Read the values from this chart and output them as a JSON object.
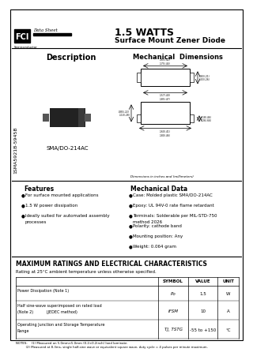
{
  "title_watts": "1.5 WATTS",
  "title_device": "Surface Mount Zener Diode",
  "logo_text": "FCI",
  "datasheet_text": "Data Sheet",
  "company_sub": "Semiconductor",
  "side_label": "1SMA5921B-5945B",
  "desc_label": "Description",
  "mech_dim_label": "Mechanical  Dimensions",
  "package_label": "SMA/DO-214AC",
  "dim_note": "Dimensions in inches and (millimeters)",
  "features_title": "Features",
  "features": [
    "For surface mounted applications",
    "1.5 W power dissipation",
    "Ideally suited for automated assembly\nprocesses"
  ],
  "mech_title": "Mechanical Data",
  "mech_data": [
    "Case: Molded plastic SMA/DO-214AC",
    "Epoxy: UL 94V-0 rate flame retardant",
    "Terminals: Solderable per MIL-STD-750\nmethod 2026",
    "Polarity: cathode band",
    "Mounting position: Any",
    "Weight: 0.064 gram"
  ],
  "max_ratings_title": "MAXIMUM RATINGS AND ELECTRICAL CHARACTERISTICS",
  "max_ratings_note": "Rating at 25°C ambient temperature unless otherwise specified.",
  "notes_text": "NOTES:    (1) Measured on 5.0mm×5.0mm (0.2×0.2inch) land laminate.\n          (2) Measured at 8.3ms, single half-sine wave or equivalent square wave, duty cycle = 4 pulses per minute maximum.",
  "bg_color": "#ffffff",
  "separator_color": "#555555"
}
